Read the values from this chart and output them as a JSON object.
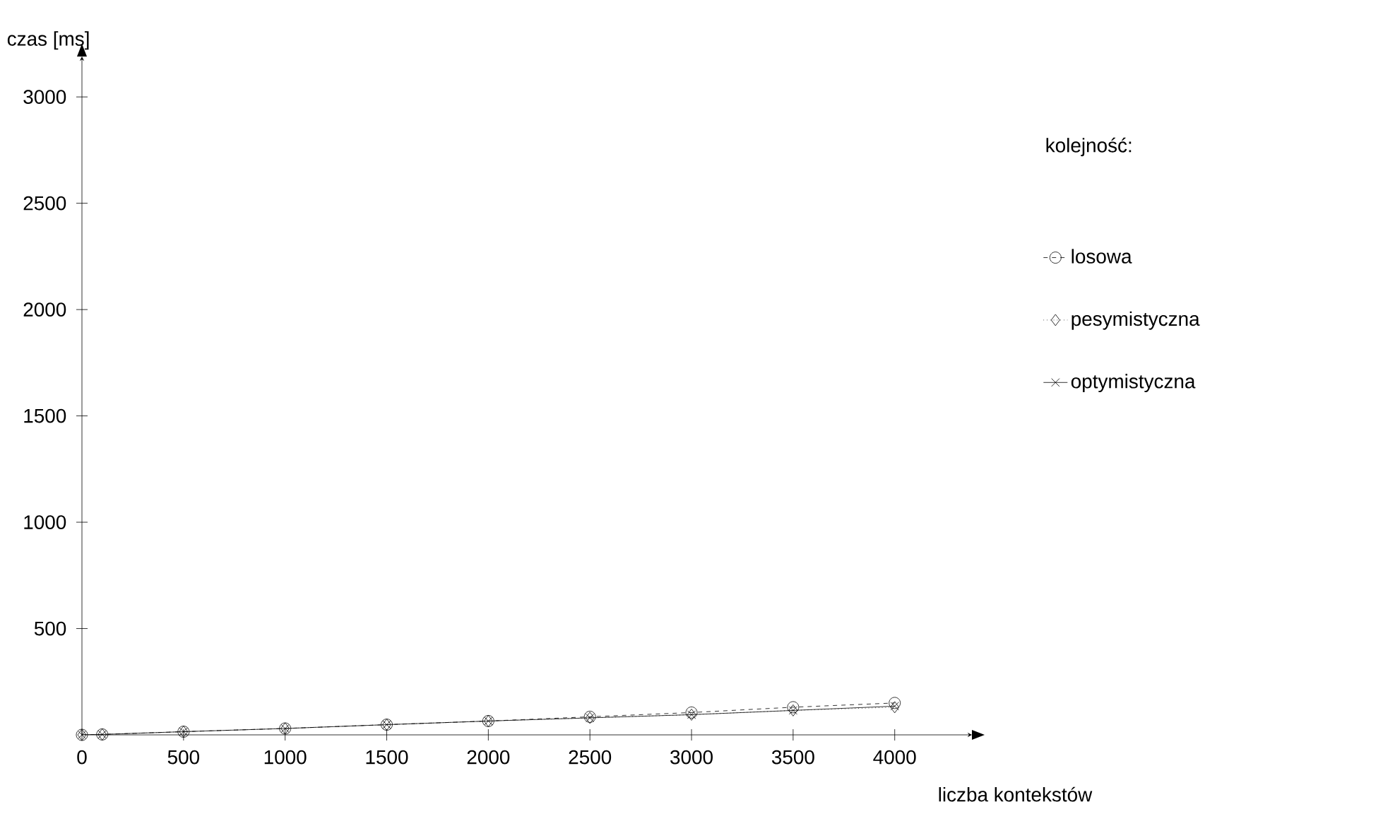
{
  "chart_data": {
    "type": "line",
    "xlabel": "liczba kontekstów",
    "ylabel": "czas [ms]",
    "legend_title": "kolejność:",
    "x": [
      0,
      100,
      500,
      1000,
      1500,
      2000,
      2500,
      3000,
      3500,
      4000
    ],
    "series": [
      {
        "name": "losowa",
        "color": "#000000",
        "marker": "circle",
        "line_style": "dashed",
        "values": [
          0,
          2,
          15,
          30,
          48,
          65,
          85,
          105,
          130,
          150
        ]
      },
      {
        "name": "pesymistyczna",
        "color": "#000000",
        "marker": "diamond",
        "line_style": "dotted",
        "values": [
          0,
          2,
          15,
          30,
          48,
          65,
          80,
          95,
          115,
          130
        ]
      },
      {
        "name": "optymistyczna",
        "color": "#000000",
        "marker": "cross",
        "line_style": "solid",
        "values": [
          0,
          2,
          15,
          30,
          48,
          65,
          80,
          95,
          115,
          135
        ]
      }
    ],
    "xlim": [
      0,
      4380
    ],
    "ylim": [
      0,
      3190
    ],
    "xticks": [
      0,
      500,
      1000,
      1500,
      2000,
      2500,
      3000,
      3500,
      4000
    ],
    "yticks": [
      500,
      1000,
      1500,
      2000,
      2500,
      3000
    ],
    "grid": false,
    "legend": "right"
  }
}
